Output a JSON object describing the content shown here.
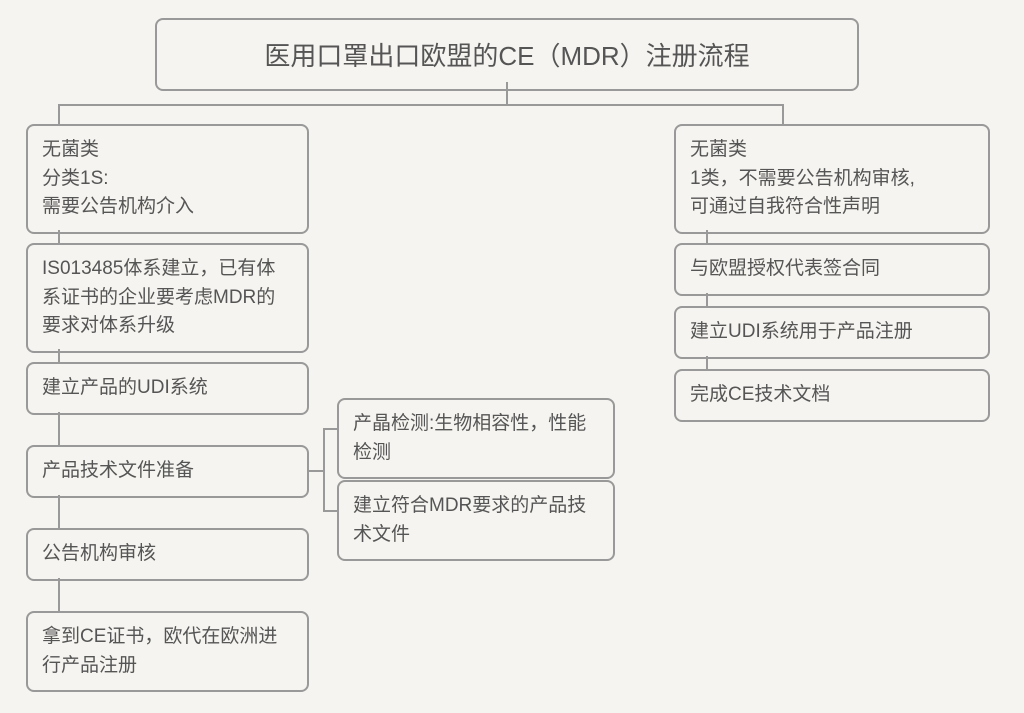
{
  "diagram": {
    "type": "flowchart",
    "background_color": "#f5f4f0",
    "border_color": "#999999",
    "text_color": "#555555",
    "border_radius": 8,
    "border_width": 2,
    "title_fontsize": 26,
    "node_fontsize": 19,
    "title": "医用口罩出口欧盟的CE（MDR）注册流程",
    "left_branch": {
      "header": "无菌类\n分类1S:\n需要公告机构介入",
      "steps": [
        "IS013485体系建立，已有体系证书的企业要考虑MDR的要求对体系升级",
        "建立产品的UDI系统",
        "产品技术文件准备",
        "公告机构审核",
        "拿到CE证书，欧代在欧洲进行产品注册"
      ],
      "side_notes": [
        "产晶检测:生物相容性，性能检测",
        "建立符合MDR要求的产品技术文件"
      ]
    },
    "right_branch": {
      "header": "无菌类\n1类，不需要公告机构审核,\n可通过自我符合性声明",
      "steps": [
        "与欧盟授权代表签合同",
        "建立UDI系统用于产品注册",
        "完成CE技术文档"
      ]
    }
  }
}
